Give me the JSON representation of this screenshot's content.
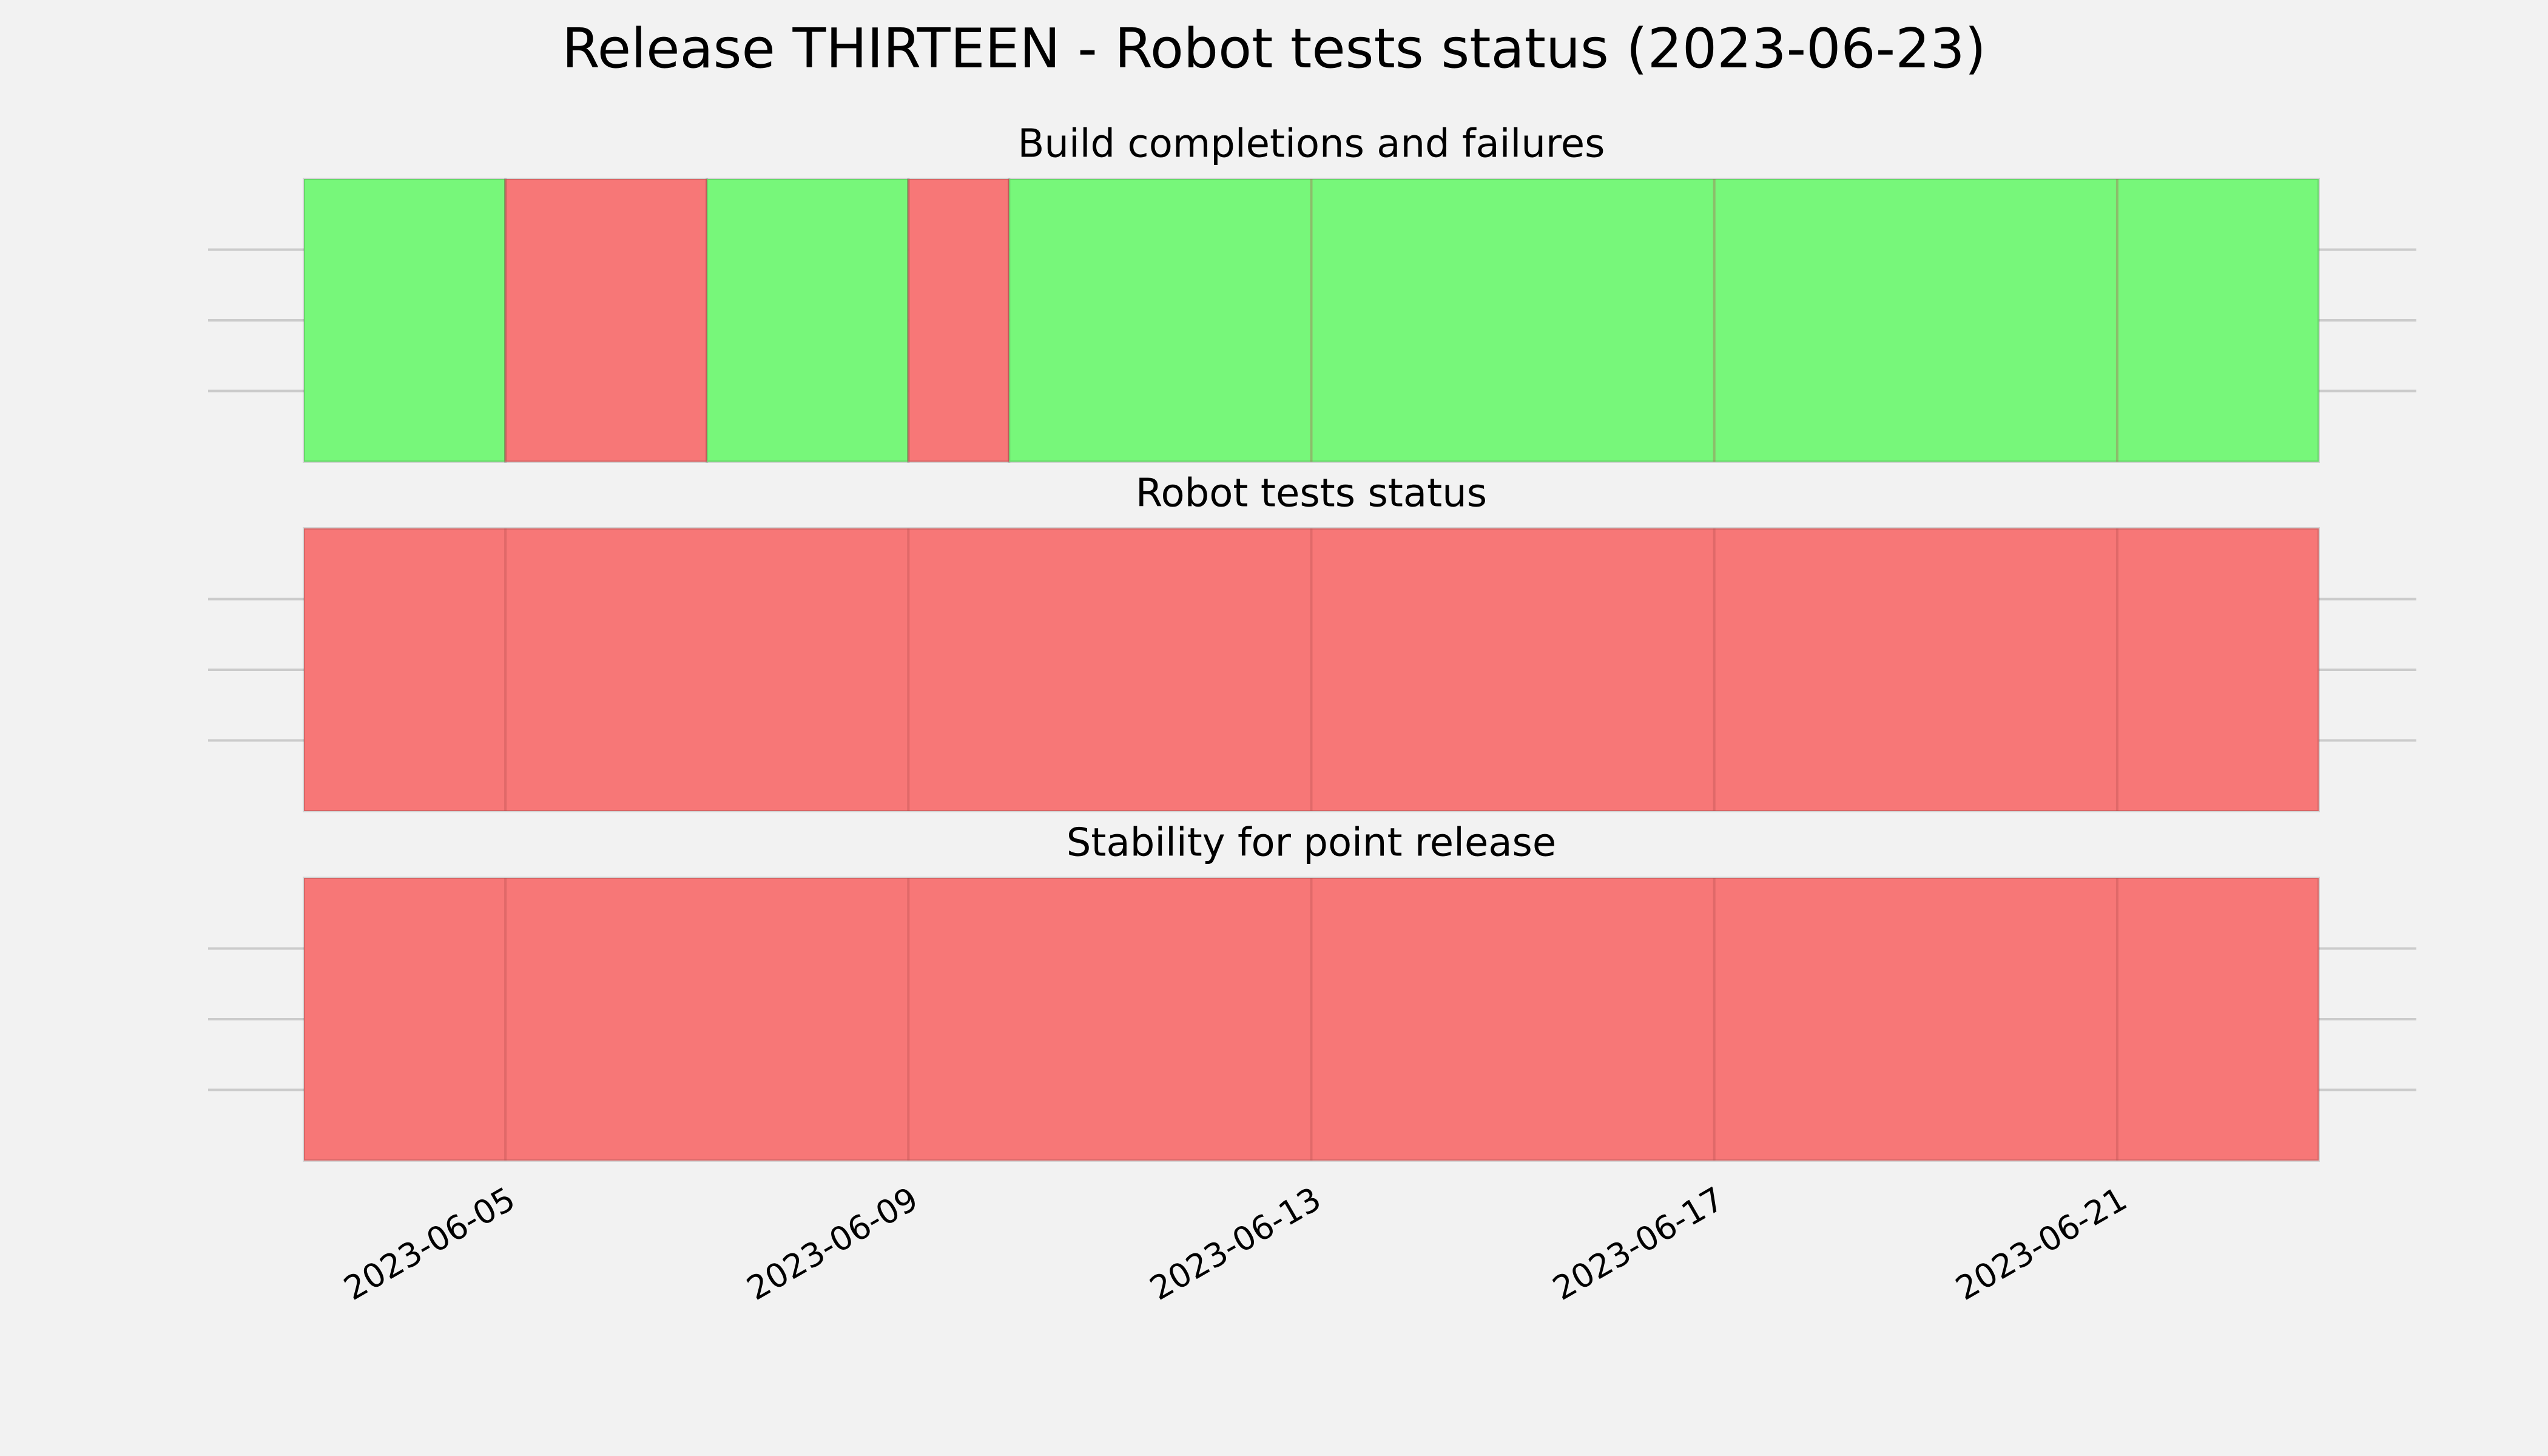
{
  "title": "Release THIRTEEN - Robot tests status (2023-06-23)",
  "chart_data": [
    {
      "type": "timeline",
      "title": "Build completions and failures",
      "segments": [
        {
          "start": "2023-06-03",
          "end": "2023-06-05",
          "color": "#77f77a"
        },
        {
          "start": "2023-06-05",
          "end": "2023-06-07",
          "color": "#f77777"
        },
        {
          "start": "2023-06-07",
          "end": "2023-06-09",
          "color": "#77f77a"
        },
        {
          "start": "2023-06-09",
          "end": "2023-06-10",
          "color": "#f77777"
        },
        {
          "start": "2023-06-10",
          "end": "2023-06-23",
          "color": "#77f77a"
        }
      ],
      "xlim": [
        "2023-06-03",
        "2023-06-23"
      ],
      "xticks": [
        "2023-06-05",
        "2023-06-09",
        "2023-06-13",
        "2023-06-17",
        "2023-06-21"
      ],
      "ylim": [
        0,
        1
      ],
      "yticks": [
        0.25,
        0.5,
        0.75
      ],
      "grid": true
    },
    {
      "type": "timeline",
      "title": "Robot tests status",
      "segments": [
        {
          "start": "2023-06-03",
          "end": "2023-06-23",
          "color": "#f77777"
        }
      ],
      "xlim": [
        "2023-06-03",
        "2023-06-23"
      ],
      "xticks": [
        "2023-06-05",
        "2023-06-09",
        "2023-06-13",
        "2023-06-17",
        "2023-06-21"
      ],
      "ylim": [
        0,
        1
      ],
      "yticks": [
        0.25,
        0.5,
        0.75
      ],
      "grid": true
    },
    {
      "type": "timeline",
      "title": "Stability for point release",
      "segments": [
        {
          "start": "2023-06-03",
          "end": "2023-06-23",
          "color": "#f77777"
        }
      ],
      "xlim": [
        "2023-06-03",
        "2023-06-23"
      ],
      "xticks": [
        "2023-06-05",
        "2023-06-09",
        "2023-06-13",
        "2023-06-17",
        "2023-06-21"
      ],
      "ylim": [
        0,
        1
      ],
      "yticks": [
        0.25,
        0.5,
        0.75
      ],
      "grid": true,
      "xtick_labels_shown": true
    }
  ]
}
